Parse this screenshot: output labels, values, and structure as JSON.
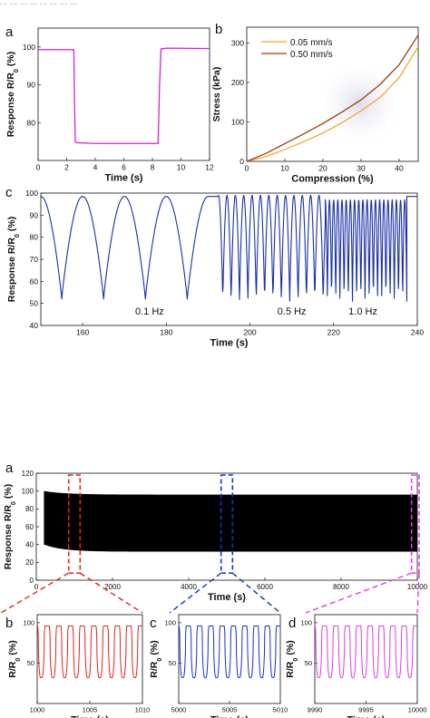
{
  "header_fragment": "... ... ... ... ... ... ... ...",
  "chart_data": [
    {
      "id": "a",
      "panel_label": "a",
      "type": "line",
      "xlabel": "Time (s)",
      "ylabel": "Response R/R",
      "ylabel_sub": "0",
      "ylabel_unit": " (%)",
      "xlim": [
        0,
        12
      ],
      "ylim": [
        70,
        105
      ],
      "xticks": [
        0,
        2,
        4,
        6,
        8,
        10,
        12
      ],
      "yticks": [
        80,
        90,
        100
      ],
      "color": "#d91ed8",
      "series": [
        {
          "x": [
            0,
            2.5,
            2.55,
            2.6,
            2.7,
            4,
            6,
            8.4,
            8.5,
            8.6,
            9,
            12
          ],
          "y": [
            99.3,
            99.3,
            85,
            75,
            74.7,
            74.5,
            74.5,
            74.5,
            90,
            99.5,
            99.7,
            99.6
          ]
        }
      ]
    },
    {
      "id": "b",
      "panel_label": "b",
      "type": "line",
      "xlabel": "Compression (%)",
      "ylabel": "Stress (kPa)",
      "xlim": [
        0,
        45
      ],
      "ylim": [
        0,
        340
      ],
      "xticks": [
        0,
        10,
        20,
        30,
        40
      ],
      "yticks": [
        0,
        100,
        200,
        300
      ],
      "legend_position": "top-left",
      "series": [
        {
          "name": "0.05 mm/s",
          "color": "#f0a830",
          "x": [
            0,
            5,
            10,
            15,
            20,
            25,
            30,
            35,
            40,
            45
          ],
          "y": [
            0,
            12,
            30,
            50,
            72,
            98,
            128,
            162,
            212,
            290
          ]
        },
        {
          "name": "0.50 mm/s",
          "color": "#9b3d12",
          "x": [
            0,
            5,
            10,
            15,
            20,
            25,
            30,
            35,
            40,
            45
          ],
          "y": [
            0,
            20,
            45,
            70,
            96,
            125,
            156,
            195,
            245,
            320
          ]
        }
      ]
    },
    {
      "id": "c",
      "panel_label": "c",
      "type": "line",
      "xlabel": "Time (s)",
      "ylabel": "Response R/R",
      "ylabel_sub": "0",
      "ylabel_unit": " (%)",
      "xlim": [
        150,
        240
      ],
      "ylim": [
        40,
        100
      ],
      "xticks": [
        160,
        180,
        200,
        220,
        240
      ],
      "yticks": [
        40,
        50,
        60,
        70,
        80,
        90,
        100
      ],
      "color": "#1a2fa8",
      "annotations": [
        {
          "text": "0.1 Hz",
          "x": 176,
          "y": 45
        },
        {
          "text": "0.5 Hz",
          "x": 210,
          "y": 45
        },
        {
          "text": "1.0 Hz",
          "x": 227,
          "y": 45
        }
      ],
      "segments": [
        {
          "start": 150,
          "end": 190,
          "period": 10,
          "high": 98.5,
          "low": 52
        },
        {
          "start": 190,
          "end": 192.5,
          "flat": 98.5
        },
        {
          "start": 192.5,
          "end": 218,
          "period": 2,
          "high": 99,
          "low": 51
        },
        {
          "start": 218,
          "end": 237.5,
          "period": 1,
          "high": 97,
          "low": 51
        },
        {
          "start": 237.5,
          "end": 240,
          "flat": 98.5
        }
      ]
    },
    {
      "id": "main",
      "panel_label": "a",
      "type": "area",
      "xlabel": "Time (s)",
      "ylabel": "Response R/R",
      "ylabel_sub": "0",
      "ylabel_unit": " (%)",
      "xlim": [
        0,
        10000
      ],
      "ylim": [
        0,
        120
      ],
      "xticks": [
        0,
        2000,
        4000,
        6000,
        8000,
        10000
      ],
      "xtick_labels": [
        "0",
        "2000",
        "4000",
        "6000",
        "8000",
        "10000"
      ],
      "yticks": [
        0,
        20,
        40,
        60,
        80,
        100,
        120
      ],
      "color": "#000000",
      "band": {
        "upper": 96,
        "lower": 32,
        "upper_start": 100,
        "lower_start": 40
      },
      "zoom_boxes": [
        {
          "x0": 850,
          "x1": 1150,
          "color": "#e0241a"
        },
        {
          "x0": 4850,
          "x1": 5150,
          "color": "#1530cc"
        },
        {
          "x0": 9850,
          "x1": 10150,
          "color": "#e03ce0"
        }
      ]
    },
    {
      "id": "zb",
      "panel_label": "b",
      "type": "line",
      "xlabel": "Time (s)",
      "ylabel": "R/R",
      "ylabel_sub": "0",
      "ylabel_unit": " (%)",
      "xlim": [
        1000,
        1010
      ],
      "ylim": [
        0,
        110
      ],
      "xticks": [
        1000,
        1005,
        1010
      ],
      "yticks": [
        50,
        100
      ],
      "ytick_labels": [
        "50",
        "100"
      ],
      "color": "#e0241a",
      "cycles": 9,
      "high": 96,
      "low": 32
    },
    {
      "id": "zc",
      "panel_label": "c",
      "type": "line",
      "xlabel": "Time (s)",
      "ylabel": "R/R",
      "ylabel_sub": "0",
      "ylabel_unit": " (%)",
      "xlim": [
        5000,
        5010
      ],
      "ylim": [
        0,
        110
      ],
      "xticks": [
        5000,
        5005,
        5010
      ],
      "xtick_labels": [
        "5000",
        "5005",
        "5010"
      ],
      "yticks": [
        50,
        100
      ],
      "color": "#1530cc",
      "cycles": 9,
      "high": 96,
      "low": 32
    },
    {
      "id": "zd",
      "panel_label": "d",
      "type": "line",
      "xlabel": "Time (s)",
      "ylabel": "R/R",
      "ylabel_sub": "0",
      "ylabel_unit": " (%)",
      "xlim": [
        9990,
        10000
      ],
      "ylim": [
        0,
        110
      ],
      "xticks": [
        9990,
        9995,
        10000
      ],
      "xtick_labels": [
        "9990",
        "9995",
        "10000"
      ],
      "yticks": [
        50,
        100
      ],
      "color": "#e03ce0",
      "cycles": 9,
      "high": 96,
      "low": 32
    }
  ]
}
